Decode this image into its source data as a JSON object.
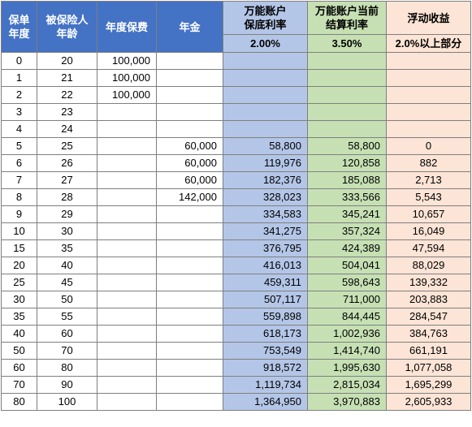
{
  "headers": {
    "policy_year": "保单年度",
    "insured_age": "被保险人年龄",
    "annual_premium": "年度保费",
    "annuity": "年金",
    "guaranteed_rate": "万能账户保底利率",
    "current_rate": "万能账户当前结算利率",
    "floating": "浮动收益"
  },
  "rates": {
    "guaranteed": "2.00%",
    "current": "3.50%",
    "floating": "2.0%以上部分"
  },
  "rows": [
    {
      "year": "0",
      "age": "20",
      "premium": "100,000",
      "annuity": "",
      "guaranteed": "",
      "current": "",
      "floating": ""
    },
    {
      "year": "1",
      "age": "21",
      "premium": "100,000",
      "annuity": "",
      "guaranteed": "",
      "current": "",
      "floating": ""
    },
    {
      "year": "2",
      "age": "22",
      "premium": "100,000",
      "annuity": "",
      "guaranteed": "",
      "current": "",
      "floating": ""
    },
    {
      "year": "3",
      "age": "23",
      "premium": "",
      "annuity": "",
      "guaranteed": "",
      "current": "",
      "floating": ""
    },
    {
      "year": "4",
      "age": "24",
      "premium": "",
      "annuity": "",
      "guaranteed": "",
      "current": "",
      "floating": ""
    },
    {
      "year": "5",
      "age": "25",
      "premium": "",
      "annuity": "60,000",
      "guaranteed": "58,800",
      "current": "58,800",
      "floating": "0"
    },
    {
      "year": "6",
      "age": "26",
      "premium": "",
      "annuity": "60,000",
      "guaranteed": "119,976",
      "current": "120,858",
      "floating": "882"
    },
    {
      "year": "7",
      "age": "27",
      "premium": "",
      "annuity": "60,000",
      "guaranteed": "182,376",
      "current": "185,088",
      "floating": "2,713"
    },
    {
      "year": "8",
      "age": "28",
      "premium": "",
      "annuity": "142,000",
      "guaranteed": "328,023",
      "current": "333,566",
      "floating": "5,543"
    },
    {
      "year": "9",
      "age": "29",
      "premium": "",
      "annuity": "",
      "guaranteed": "334,583",
      "current": "345,241",
      "floating": "10,657"
    },
    {
      "year": "10",
      "age": "30",
      "premium": "",
      "annuity": "",
      "guaranteed": "341,275",
      "current": "357,324",
      "floating": "16,049"
    },
    {
      "year": "15",
      "age": "35",
      "premium": "",
      "annuity": "",
      "guaranteed": "376,795",
      "current": "424,389",
      "floating": "47,594"
    },
    {
      "year": "20",
      "age": "40",
      "premium": "",
      "annuity": "",
      "guaranteed": "416,013",
      "current": "504,041",
      "floating": "88,029"
    },
    {
      "year": "25",
      "age": "45",
      "premium": "",
      "annuity": "",
      "guaranteed": "459,311",
      "current": "598,643",
      "floating": "139,332"
    },
    {
      "year": "30",
      "age": "50",
      "premium": "",
      "annuity": "",
      "guaranteed": "507,117",
      "current": "711,000",
      "floating": "203,883"
    },
    {
      "year": "35",
      "age": "55",
      "premium": "",
      "annuity": "",
      "guaranteed": "559,898",
      "current": "844,445",
      "floating": "284,547"
    },
    {
      "year": "40",
      "age": "60",
      "premium": "",
      "annuity": "",
      "guaranteed": "618,173",
      "current": "1,002,936",
      "floating": "384,763"
    },
    {
      "year": "50",
      "age": "70",
      "premium": "",
      "annuity": "",
      "guaranteed": "753,549",
      "current": "1,414,740",
      "floating": "661,191"
    },
    {
      "year": "60",
      "age": "80",
      "premium": "",
      "annuity": "",
      "guaranteed": "918,572",
      "current": "1,995,630",
      "floating": "1,077,058"
    },
    {
      "year": "70",
      "age": "90",
      "premium": "",
      "annuity": "",
      "guaranteed": "1,119,734",
      "current": "2,815,034",
      "floating": "1,695,299"
    },
    {
      "year": "80",
      "age": "100",
      "premium": "",
      "annuity": "",
      "guaranteed": "1,364,950",
      "current": "3,970,883",
      "floating": "2,605,933"
    }
  ],
  "colors": {
    "header_blue": "#4472c4",
    "guaranteed_fill": "#b4c6e7",
    "current_fill": "#c6e0b4",
    "floating_fill": "#fce4d6"
  }
}
